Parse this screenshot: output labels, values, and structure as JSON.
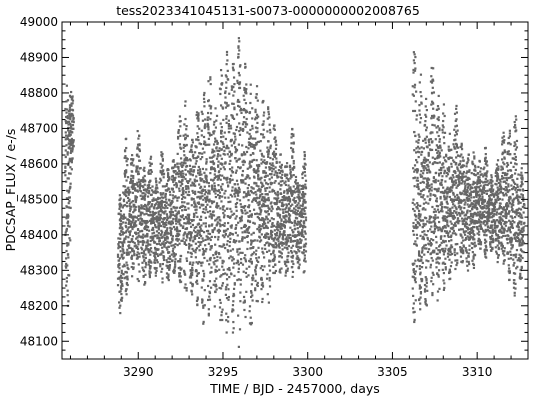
{
  "chart_data": {
    "type": "scatter",
    "title": "tess2023341045131-s0073-0000000002008765",
    "xlabel": "TIME / BJD - 2457000, days",
    "ylabel": "PDCSAP_FLUX / e-/s",
    "xlim": [
      3285.5,
      3313.0
    ],
    "ylim": [
      48050,
      49000
    ],
    "xticks": [
      3290,
      3295,
      3300,
      3305,
      3310
    ],
    "xtick_labels": [
      "3290",
      "3295",
      "3300",
      "3305",
      "3310"
    ],
    "yticks": [
      48100,
      48200,
      48300,
      48400,
      48500,
      48600,
      48700,
      48800,
      48900,
      49000
    ],
    "ytick_labels": [
      "48100",
      "48200",
      "48300",
      "48400",
      "48500",
      "48600",
      "48700",
      "48800",
      "48900",
      "49000"
    ],
    "grid": false,
    "marker_color": "#666666",
    "segments": [
      {
        "x_start": 3285.7,
        "x_end": 3286.2
      },
      {
        "x_start": 3288.8,
        "x_end": 3299.9
      },
      {
        "x_start": 3306.2,
        "x_end": 3312.8
      }
    ],
    "pulsation_period_days": 0.35,
    "series": [
      {
        "x": [
          3285.8,
          3286.05,
          3288.95,
          3289.3,
          3289.65,
          3290.0,
          3290.35,
          3290.7,
          3291.05,
          3291.4,
          3291.75,
          3292.1,
          3292.45,
          3292.8,
          3293.15,
          3293.5,
          3293.85,
          3294.2,
          3294.55,
          3294.9,
          3295.25,
          3295.6,
          3295.95,
          3296.3,
          3296.65,
          3297.0,
          3297.35,
          3297.7,
          3298.05,
          3298.4,
          3298.75,
          3299.1,
          3299.45,
          3299.8,
          3306.3,
          3306.65,
          3307.0,
          3307.35,
          3307.7,
          3308.05,
          3308.4,
          3308.75,
          3309.1,
          3309.45,
          3309.8,
          3310.15,
          3310.5,
          3310.85,
          3311.2,
          3311.55,
          3311.9,
          3312.25,
          3312.6
        ],
        "y_max": [
          48840,
          48810,
          48520,
          48680,
          48640,
          48700,
          48600,
          48650,
          48560,
          48660,
          48600,
          48640,
          48740,
          48780,
          48700,
          48780,
          48840,
          48880,
          48820,
          48870,
          48950,
          48900,
          48960,
          48900,
          48830,
          48820,
          48790,
          48780,
          48720,
          48640,
          48620,
          48700,
          48560,
          48640,
          48950,
          48880,
          48790,
          48900,
          48800,
          48770,
          48700,
          48780,
          48680,
          48640,
          48640,
          48620,
          48650,
          48570,
          48620,
          48690,
          48700,
          48750,
          48600
        ],
        "y_min": [
          48160,
          48580,
          48170,
          48220,
          48280,
          48260,
          48250,
          48280,
          48280,
          48260,
          48250,
          48280,
          48230,
          48220,
          48220,
          48200,
          48140,
          48150,
          48180,
          48130,
          48100,
          48120,
          48080,
          48130,
          48110,
          48160,
          48200,
          48200,
          48250,
          48280,
          48270,
          48280,
          48290,
          48280,
          48120,
          48150,
          48180,
          48220,
          48200,
          48240,
          48260,
          48280,
          48300,
          48290,
          48300,
          48350,
          48330,
          48350,
          48320,
          48300,
          48270,
          48200,
          48250
        ]
      }
    ]
  }
}
